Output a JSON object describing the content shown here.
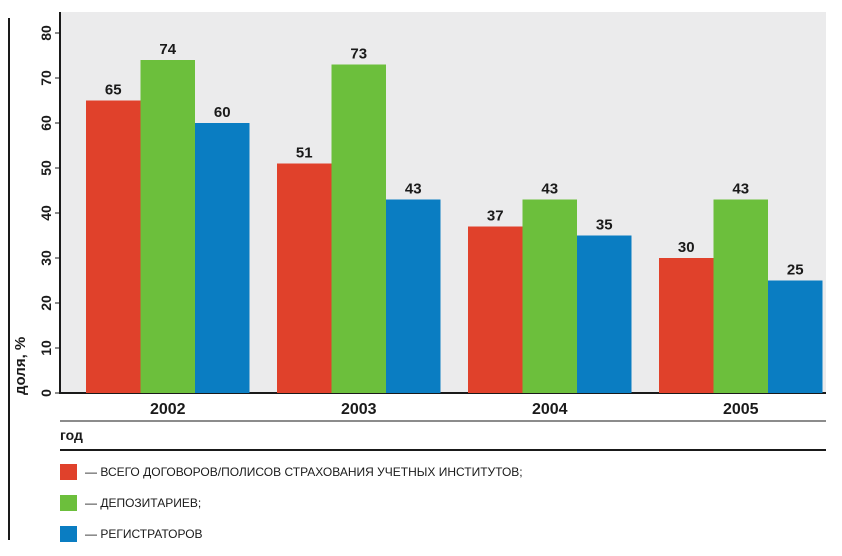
{
  "chart_data": {
    "type": "bar",
    "title": "",
    "xlabel": "год",
    "ylabel": "доля, %",
    "ylim": [
      0,
      80
    ],
    "yticks": [
      "0",
      "10",
      "20",
      "30",
      "40",
      "50",
      "60",
      "70",
      "80"
    ],
    "grid": false,
    "legend_position": "bottom-left",
    "categories": [
      "2002",
      "2003",
      "2004",
      "2005"
    ],
    "series": [
      {
        "name": "— ВСЕГО ДОГОВОРОВ/ПОЛИСОВ СТРАХОВАНИЯ УЧЕТНЫХ ИНСТИТУТОВ;",
        "color": "#e0412b",
        "values": [
          65,
          51,
          37,
          30
        ]
      },
      {
        "name": "— ДЕПОЗИТАРИЕВ;",
        "color": "#6cbf3c",
        "values": [
          74,
          73,
          43,
          43
        ]
      },
      {
        "name": "— РЕГИСТРАТОРОВ",
        "color": "#0a7dc2",
        "values": [
          60,
          43,
          35,
          25
        ]
      }
    ]
  }
}
